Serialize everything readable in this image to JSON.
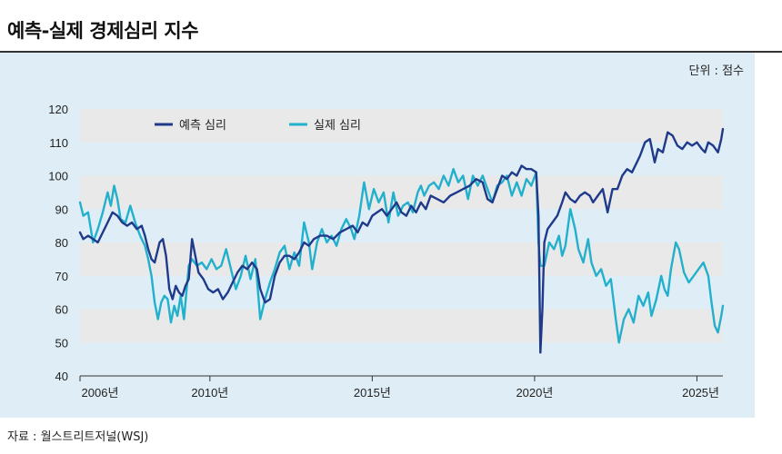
{
  "header": {
    "title": "예측-실제 경제심리 지수",
    "unit": "단위 : 점수",
    "source": "자료 : 월스트리트저널(WSJ)"
  },
  "colors": {
    "expected": "#1f3a8a",
    "actual": "#22b0cc",
    "band": "#e9e9ea",
    "panel": "#dfeef6"
  },
  "chart_data": {
    "type": "line",
    "title": "예측-실제 경제심리 지수",
    "unit": "단위 : 점수",
    "ylim": [
      40,
      120
    ],
    "y_ticks": [
      40,
      50,
      60,
      70,
      80,
      90,
      100,
      110,
      120
    ],
    "x_range": [
      2006.0,
      2025.8
    ],
    "x_tick_values": [
      2006,
      2010,
      2015,
      2020,
      2025
    ],
    "x_tick_labels": [
      "2006년",
      "2010년",
      "2015년",
      "2020년",
      "2025년"
    ],
    "legend_position": "top-left",
    "series": [
      {
        "name": "예측 심리",
        "color": "#1f3a8a",
        "points": [
          [
            2006.0,
            83
          ],
          [
            2006.1,
            81
          ],
          [
            2006.25,
            82
          ],
          [
            2006.4,
            81
          ],
          [
            2006.55,
            80
          ],
          [
            2006.7,
            83
          ],
          [
            2006.85,
            86
          ],
          [
            2007.0,
            89
          ],
          [
            2007.15,
            88
          ],
          [
            2007.3,
            86
          ],
          [
            2007.45,
            85
          ],
          [
            2007.6,
            86
          ],
          [
            2007.75,
            84
          ],
          [
            2007.9,
            85
          ],
          [
            2008.0,
            82
          ],
          [
            2008.1,
            78
          ],
          [
            2008.2,
            75
          ],
          [
            2008.3,
            74
          ],
          [
            2008.45,
            80
          ],
          [
            2008.55,
            81
          ],
          [
            2008.65,
            76
          ],
          [
            2008.75,
            66
          ],
          [
            2008.85,
            63
          ],
          [
            2008.95,
            67
          ],
          [
            2009.05,
            65
          ],
          [
            2009.15,
            64
          ],
          [
            2009.25,
            67
          ],
          [
            2009.35,
            69
          ],
          [
            2009.45,
            81
          ],
          [
            2009.55,
            76
          ],
          [
            2009.65,
            71
          ],
          [
            2009.8,
            69
          ],
          [
            2009.95,
            66
          ],
          [
            2010.1,
            65
          ],
          [
            2010.25,
            66
          ],
          [
            2010.4,
            63
          ],
          [
            2010.55,
            65
          ],
          [
            2010.7,
            68
          ],
          [
            2010.85,
            71
          ],
          [
            2011.0,
            73
          ],
          [
            2011.15,
            72
          ],
          [
            2011.3,
            74
          ],
          [
            2011.45,
            72
          ],
          [
            2011.55,
            66
          ],
          [
            2011.7,
            62
          ],
          [
            2011.85,
            63
          ],
          [
            2012.0,
            70
          ],
          [
            2012.15,
            74
          ],
          [
            2012.3,
            76
          ],
          [
            2012.45,
            76
          ],
          [
            2012.6,
            75
          ],
          [
            2012.75,
            77
          ],
          [
            2012.9,
            80
          ],
          [
            2013.05,
            79
          ],
          [
            2013.2,
            81
          ],
          [
            2013.4,
            82
          ],
          [
            2013.6,
            82
          ],
          [
            2013.8,
            81
          ],
          [
            2014.0,
            83
          ],
          [
            2014.2,
            84
          ],
          [
            2014.4,
            85
          ],
          [
            2014.55,
            83
          ],
          [
            2014.7,
            86
          ],
          [
            2014.85,
            85
          ],
          [
            2015.0,
            88
          ],
          [
            2015.15,
            89
          ],
          [
            2015.3,
            90
          ],
          [
            2015.45,
            88
          ],
          [
            2015.6,
            90
          ],
          [
            2015.75,
            92
          ],
          [
            2015.9,
            89
          ],
          [
            2016.05,
            88
          ],
          [
            2016.2,
            91
          ],
          [
            2016.35,
            89
          ],
          [
            2016.5,
            92
          ],
          [
            2016.65,
            90
          ],
          [
            2016.8,
            94
          ],
          [
            2017.0,
            93
          ],
          [
            2017.2,
            92
          ],
          [
            2017.4,
            94
          ],
          [
            2017.6,
            95
          ],
          [
            2017.8,
            96
          ],
          [
            2018.0,
            97
          ],
          [
            2018.2,
            99
          ],
          [
            2018.4,
            98
          ],
          [
            2018.55,
            93
          ],
          [
            2018.7,
            92
          ],
          [
            2018.85,
            96
          ],
          [
            2019.0,
            100
          ],
          [
            2019.15,
            99
          ],
          [
            2019.3,
            101
          ],
          [
            2019.45,
            100
          ],
          [
            2019.6,
            103
          ],
          [
            2019.75,
            102
          ],
          [
            2019.9,
            102
          ],
          [
            2020.05,
            101
          ],
          [
            2020.12,
            88
          ],
          [
            2020.18,
            47
          ],
          [
            2020.24,
            60
          ],
          [
            2020.3,
            80
          ],
          [
            2020.4,
            84
          ],
          [
            2020.55,
            86
          ],
          [
            2020.7,
            88
          ],
          [
            2020.85,
            92
          ],
          [
            2020.95,
            95
          ],
          [
            2021.1,
            93
          ],
          [
            2021.25,
            92
          ],
          [
            2021.4,
            94
          ],
          [
            2021.55,
            95
          ],
          [
            2021.7,
            94
          ],
          [
            2021.8,
            92
          ],
          [
            2021.95,
            94
          ],
          [
            2022.1,
            96
          ],
          [
            2022.25,
            89
          ],
          [
            2022.4,
            96
          ],
          [
            2022.55,
            96
          ],
          [
            2022.7,
            100
          ],
          [
            2022.85,
            102
          ],
          [
            2023.0,
            101
          ],
          [
            2023.15,
            104
          ],
          [
            2023.25,
            106
          ],
          [
            2023.4,
            110
          ],
          [
            2023.55,
            111
          ],
          [
            2023.7,
            104
          ],
          [
            2023.8,
            108
          ],
          [
            2023.95,
            107
          ],
          [
            2024.1,
            113
          ],
          [
            2024.25,
            112
          ],
          [
            2024.4,
            109
          ],
          [
            2024.55,
            108
          ],
          [
            2024.7,
            110
          ],
          [
            2024.85,
            109
          ],
          [
            2025.0,
            110
          ],
          [
            2025.15,
            108
          ],
          [
            2025.25,
            107
          ],
          [
            2025.35,
            110
          ],
          [
            2025.5,
            109
          ],
          [
            2025.65,
            107
          ],
          [
            2025.75,
            111
          ],
          [
            2025.8,
            114
          ]
        ]
      },
      {
        "name": "실제 심리",
        "color": "#22b0cc",
        "points": [
          [
            2006.0,
            92
          ],
          [
            2006.1,
            88
          ],
          [
            2006.25,
            89
          ],
          [
            2006.4,
            80
          ],
          [
            2006.55,
            84
          ],
          [
            2006.7,
            89
          ],
          [
            2006.85,
            95
          ],
          [
            2006.95,
            91
          ],
          [
            2007.05,
            97
          ],
          [
            2007.15,
            93
          ],
          [
            2007.25,
            87
          ],
          [
            2007.4,
            86
          ],
          [
            2007.55,
            91
          ],
          [
            2007.7,
            86
          ],
          [
            2007.85,
            82
          ],
          [
            2008.0,
            79
          ],
          [
            2008.1,
            75
          ],
          [
            2008.2,
            70
          ],
          [
            2008.3,
            62
          ],
          [
            2008.4,
            57
          ],
          [
            2008.5,
            62
          ],
          [
            2008.6,
            64
          ],
          [
            2008.7,
            63
          ],
          [
            2008.8,
            56
          ],
          [
            2008.9,
            61
          ],
          [
            2009.0,
            58
          ],
          [
            2009.1,
            64
          ],
          [
            2009.2,
            57
          ],
          [
            2009.35,
            73
          ],
          [
            2009.45,
            75
          ],
          [
            2009.6,
            73
          ],
          [
            2009.75,
            74
          ],
          [
            2009.9,
            72
          ],
          [
            2010.05,
            75
          ],
          [
            2010.2,
            72
          ],
          [
            2010.35,
            73
          ],
          [
            2010.5,
            78
          ],
          [
            2010.65,
            72
          ],
          [
            2010.8,
            66
          ],
          [
            2010.95,
            70
          ],
          [
            2011.1,
            76
          ],
          [
            2011.25,
            69
          ],
          [
            2011.4,
            75
          ],
          [
            2011.55,
            57
          ],
          [
            2011.7,
            63
          ],
          [
            2011.85,
            68
          ],
          [
            2012.0,
            72
          ],
          [
            2012.15,
            77
          ],
          [
            2012.3,
            79
          ],
          [
            2012.45,
            72
          ],
          [
            2012.6,
            77
          ],
          [
            2012.75,
            73
          ],
          [
            2012.9,
            86
          ],
          [
            2013.05,
            80
          ],
          [
            2013.15,
            72
          ],
          [
            2013.3,
            80
          ],
          [
            2013.45,
            84
          ],
          [
            2013.6,
            80
          ],
          [
            2013.75,
            82
          ],
          [
            2013.9,
            79
          ],
          [
            2014.05,
            84
          ],
          [
            2014.2,
            87
          ],
          [
            2014.35,
            84
          ],
          [
            2014.45,
            81
          ],
          [
            2014.6,
            88
          ],
          [
            2014.75,
            98
          ],
          [
            2014.9,
            90
          ],
          [
            2015.05,
            96
          ],
          [
            2015.2,
            92
          ],
          [
            2015.35,
            95
          ],
          [
            2015.5,
            86
          ],
          [
            2015.65,
            95
          ],
          [
            2015.8,
            88
          ],
          [
            2015.95,
            91
          ],
          [
            2016.1,
            92
          ],
          [
            2016.25,
            89
          ],
          [
            2016.4,
            95
          ],
          [
            2016.5,
            97
          ],
          [
            2016.6,
            94
          ],
          [
            2016.75,
            97
          ],
          [
            2016.9,
            98
          ],
          [
            2017.05,
            96
          ],
          [
            2017.2,
            100
          ],
          [
            2017.35,
            97
          ],
          [
            2017.5,
            102
          ],
          [
            2017.65,
            98
          ],
          [
            2017.8,
            100
          ],
          [
            2017.95,
            93
          ],
          [
            2018.1,
            100
          ],
          [
            2018.25,
            97
          ],
          [
            2018.4,
            100
          ],
          [
            2018.55,
            96
          ],
          [
            2018.7,
            92
          ],
          [
            2018.85,
            97
          ],
          [
            2019.0,
            98
          ],
          [
            2019.15,
            100
          ],
          [
            2019.3,
            94
          ],
          [
            2019.45,
            98
          ],
          [
            2019.6,
            94
          ],
          [
            2019.75,
            99
          ],
          [
            2019.9,
            97
          ],
          [
            2020.05,
            101
          ],
          [
            2020.12,
            80
          ],
          [
            2020.18,
            73
          ],
          [
            2020.3,
            73
          ],
          [
            2020.45,
            80
          ],
          [
            2020.6,
            78
          ],
          [
            2020.75,
            82
          ],
          [
            2020.85,
            76
          ],
          [
            2020.95,
            79
          ],
          [
            2021.1,
            90
          ],
          [
            2021.25,
            84
          ],
          [
            2021.35,
            78
          ],
          [
            2021.5,
            74
          ],
          [
            2021.65,
            81
          ],
          [
            2021.75,
            74
          ],
          [
            2021.9,
            70
          ],
          [
            2022.05,
            72
          ],
          [
            2022.2,
            67
          ],
          [
            2022.35,
            69
          ],
          [
            2022.5,
            57
          ],
          [
            2022.6,
            50
          ],
          [
            2022.75,
            57
          ],
          [
            2022.9,
            60
          ],
          [
            2023.05,
            56
          ],
          [
            2023.2,
            64
          ],
          [
            2023.35,
            61
          ],
          [
            2023.5,
            65
          ],
          [
            2023.6,
            58
          ],
          [
            2023.75,
            63
          ],
          [
            2023.9,
            70
          ],
          [
            2024.0,
            66
          ],
          [
            2024.1,
            64
          ],
          [
            2024.2,
            72
          ],
          [
            2024.35,
            80
          ],
          [
            2024.45,
            78
          ],
          [
            2024.6,
            71
          ],
          [
            2024.75,
            68
          ],
          [
            2024.9,
            70
          ],
          [
            2025.05,
            72
          ],
          [
            2025.2,
            74
          ],
          [
            2025.35,
            70
          ],
          [
            2025.45,
            62
          ],
          [
            2025.55,
            55
          ],
          [
            2025.65,
            53
          ],
          [
            2025.75,
            58
          ],
          [
            2025.8,
            61
          ]
        ]
      }
    ]
  }
}
